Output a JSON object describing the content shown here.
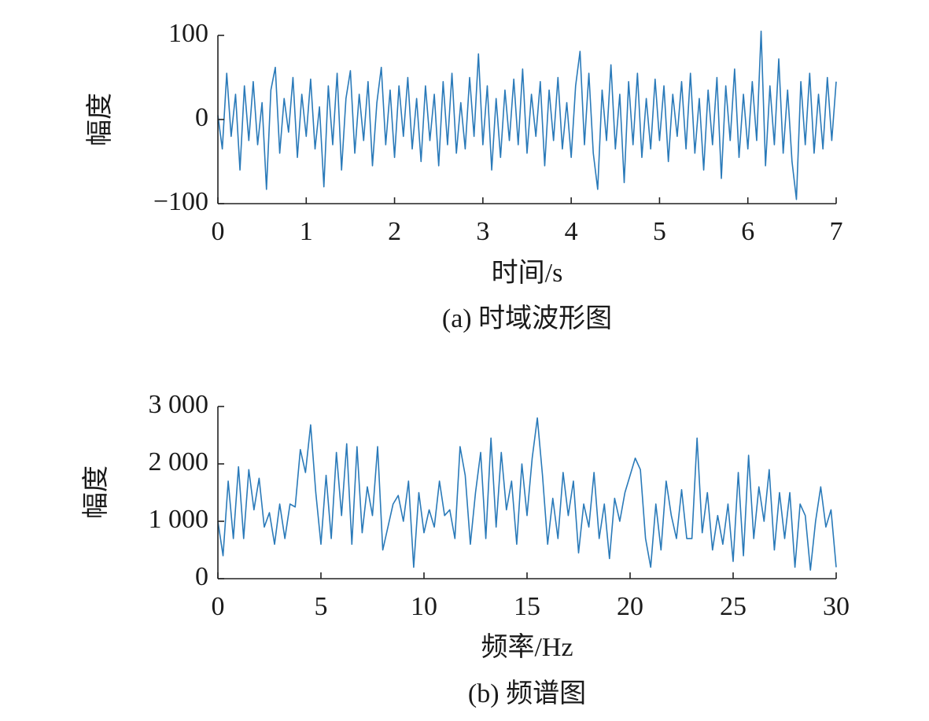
{
  "chart_data": [
    {
      "type": "line",
      "ylabel": "幅度",
      "xlabel": "时间/s",
      "caption": "(a) 时域波形图",
      "color": "#2a7ab9",
      "x": [
        0,
        0.05,
        0.1,
        0.15,
        0.2,
        0.25,
        0.3,
        0.35,
        0.4,
        0.45,
        0.5,
        0.55,
        0.6,
        0.65,
        0.7,
        0.75,
        0.8,
        0.85,
        0.9,
        0.95,
        1,
        1.05,
        1.1,
        1.15,
        1.2,
        1.25,
        1.3,
        1.35,
        1.4,
        1.45,
        1.5,
        1.55,
        1.6,
        1.65,
        1.7,
        1.75,
        1.8,
        1.85,
        1.9,
        1.95,
        2,
        2.05,
        2.1,
        2.15,
        2.2,
        2.25,
        2.3,
        2.35,
        2.4,
        2.45,
        2.5,
        2.55,
        2.6,
        2.65,
        2.7,
        2.75,
        2.8,
        2.85,
        2.9,
        2.95,
        3,
        3.05,
        3.1,
        3.15,
        3.2,
        3.25,
        3.3,
        3.35,
        3.4,
        3.45,
        3.5,
        3.55,
        3.6,
        3.65,
        3.7,
        3.75,
        3.8,
        3.85,
        3.9,
        3.95,
        4,
        4.05,
        4.1,
        4.15,
        4.2,
        4.25,
        4.3,
        4.35,
        4.4,
        4.45,
        4.5,
        4.55,
        4.6,
        4.65,
        4.7,
        4.75,
        4.8,
        4.85,
        4.9,
        4.95,
        5,
        5.05,
        5.1,
        5.15,
        5.2,
        5.25,
        5.3,
        5.35,
        5.4,
        5.45,
        5.5,
        5.55,
        5.6,
        5.65,
        5.7,
        5.75,
        5.8,
        5.85,
        5.9,
        5.95,
        6,
        6.05,
        6.1,
        6.15,
        6.2,
        6.25,
        6.3,
        6.35,
        6.4,
        6.45,
        6.5,
        6.55,
        6.6,
        6.65,
        6.7,
        6.75,
        6.8,
        6.85,
        6.9,
        6.95,
        7
      ],
      "values": [
        5,
        -35,
        55,
        -20,
        30,
        -60,
        40,
        -25,
        45,
        -30,
        20,
        -83,
        35,
        62,
        -40,
        25,
        -15,
        50,
        -45,
        30,
        -20,
        48,
        -35,
        15,
        -80,
        40,
        -30,
        55,
        -60,
        25,
        58,
        -40,
        30,
        -25,
        45,
        -55,
        20,
        62,
        -30,
        35,
        -45,
        40,
        -20,
        50,
        -35,
        25,
        -50,
        40,
        -25,
        30,
        -55,
        45,
        -30,
        55,
        -40,
        20,
        -35,
        50,
        -20,
        78,
        -30,
        40,
        -60,
        25,
        -45,
        35,
        -25,
        48,
        -30,
        60,
        -40,
        30,
        -20,
        45,
        -55,
        35,
        -25,
        50,
        -35,
        20,
        -45,
        40,
        81,
        -30,
        55,
        -40,
        -83,
        35,
        -25,
        65,
        -35,
        30,
        -75,
        45,
        -30,
        55,
        -45,
        25,
        -35,
        48,
        -25,
        40,
        -50,
        30,
        -20,
        45,
        -35,
        55,
        -40,
        25,
        -60,
        35,
        -30,
        50,
        -70,
        40,
        -25,
        60,
        -45,
        30,
        -35,
        45,
        -25,
        105,
        -55,
        40,
        -30,
        72,
        -40,
        35,
        -50,
        -95,
        45,
        -30,
        55,
        -40,
        30,
        -35,
        50,
        -25,
        45
      ],
      "xlim": [
        0,
        7
      ],
      "xticks": [
        0,
        1,
        2,
        3,
        4,
        5,
        6,
        7
      ],
      "ylim": [
        -100,
        100
      ],
      "yticks": [
        {
          "value": -100,
          "label": "−100"
        },
        0,
        100
      ]
    },
    {
      "type": "line",
      "ylabel": "幅度",
      "xlabel": "频率/Hz",
      "caption": "(b) 频谱图",
      "color": "#2a7ab9",
      "x": [
        0,
        0.25,
        0.5,
        0.75,
        1,
        1.25,
        1.5,
        1.75,
        2,
        2.25,
        2.5,
        2.75,
        3,
        3.25,
        3.5,
        3.75,
        4,
        4.25,
        4.5,
        4.75,
        5,
        5.25,
        5.5,
        5.75,
        6,
        6.25,
        6.5,
        6.75,
        7,
        7.25,
        7.5,
        7.75,
        8,
        8.25,
        8.5,
        8.75,
        9,
        9.25,
        9.5,
        9.75,
        10,
        10.25,
        10.5,
        10.75,
        11,
        11.25,
        11.5,
        11.75,
        12,
        12.25,
        12.5,
        12.75,
        13,
        13.25,
        13.5,
        13.75,
        14,
        14.25,
        14.5,
        14.75,
        15,
        15.25,
        15.5,
        15.75,
        16,
        16.25,
        16.5,
        16.75,
        17,
        17.25,
        17.5,
        17.75,
        18,
        18.25,
        18.5,
        18.75,
        19,
        19.25,
        19.5,
        19.75,
        20,
        20.25,
        20.5,
        20.75,
        21,
        21.25,
        21.5,
        21.75,
        22,
        22.25,
        22.5,
        22.75,
        23,
        23.25,
        23.5,
        23.75,
        24,
        24.25,
        24.5,
        24.75,
        25,
        25.25,
        25.5,
        25.75,
        26,
        26.25,
        26.5,
        26.75,
        27,
        27.25,
        27.5,
        27.75,
        28,
        28.25,
        28.5,
        28.75,
        29,
        29.25,
        29.5,
        29.75,
        30
      ],
      "values": [
        1000,
        400,
        1700,
        700,
        1950,
        700,
        1900,
        1200,
        1750,
        900,
        1150,
        600,
        1300,
        700,
        1300,
        1250,
        2250,
        1850,
        2680,
        1500,
        600,
        1800,
        700,
        2200,
        1100,
        2350,
        600,
        2300,
        800,
        1600,
        1100,
        2300,
        500,
        900,
        1300,
        1450,
        1000,
        1700,
        200,
        1500,
        800,
        1200,
        900,
        1700,
        1100,
        1200,
        700,
        2300,
        1800,
        600,
        1500,
        2200,
        700,
        2450,
        900,
        2200,
        1200,
        1700,
        600,
        2000,
        1100,
        2100,
        2800,
        1800,
        600,
        1400,
        700,
        1850,
        1100,
        1700,
        450,
        1300,
        900,
        1850,
        700,
        1300,
        350,
        1400,
        1000,
        1500,
        1800,
        2100,
        1900,
        700,
        200,
        1300,
        500,
        1700,
        1100,
        700,
        1550,
        700,
        700,
        2450,
        800,
        1500,
        500,
        1100,
        600,
        1300,
        300,
        1850,
        400,
        2150,
        700,
        1600,
        1000,
        1900,
        500,
        1500,
        700,
        1500,
        200,
        1300,
        1100,
        150,
        1000,
        1600,
        900,
        1200,
        200
      ],
      "xlim": [
        0,
        30
      ],
      "xticks": [
        0,
        5,
        10,
        15,
        20,
        25,
        30
      ],
      "ylim": [
        0,
        3000
      ],
      "yticks": [
        0,
        {
          "value": 1000,
          "label": "1 000"
        },
        {
          "value": 2000,
          "label": "2 000"
        },
        {
          "value": 3000,
          "label": "3 000"
        }
      ]
    }
  ]
}
